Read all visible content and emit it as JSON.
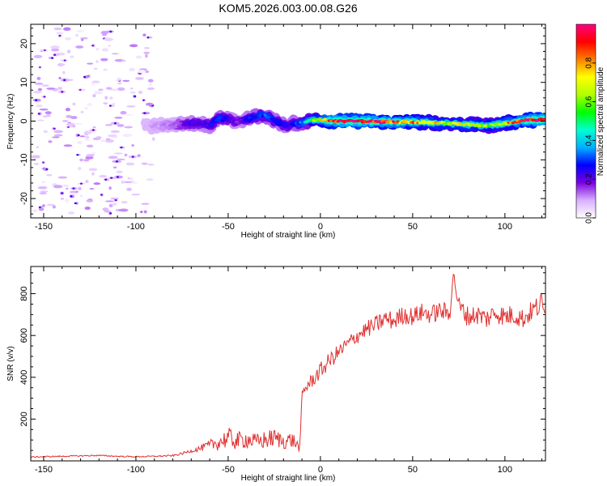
{
  "title": "KOM5.2026.003.00.08.G26",
  "chart_data": [
    {
      "type": "heatmap",
      "xlabel": "Height of straight line (km)",
      "ylabel": "Frequency (Hz)",
      "xlim": [
        -157,
        122
      ],
      "ylim": [
        -25,
        25
      ],
      "x_ticks": [
        -150,
        -100,
        -50,
        0,
        50,
        100
      ],
      "x_tick_labels": [
        "-150",
        "-100",
        "-50",
        "0",
        "50",
        "100"
      ],
      "y_ticks": [
        -20,
        -10,
        0,
        10,
        20
      ],
      "y_tick_labels": [
        "-20",
        "-10",
        "0",
        "10",
        "20"
      ],
      "colorbar": {
        "label": "Normalized spectral amplitude",
        "range": [
          0,
          1
        ],
        "ticks": [
          0,
          0.2,
          0.4,
          0.6,
          0.8
        ],
        "tick_labels": [
          "0.0",
          "0.2",
          "0.4",
          "0.6",
          "0.8"
        ],
        "colormap": [
          "#ffffff",
          "#d8b0ff",
          "#7a00e0",
          "#0000ff",
          "#00b0ff",
          "#00ffd0",
          "#00ff00",
          "#b0ff00",
          "#ffff00",
          "#ff8000",
          "#ff0000",
          "#ff0080"
        ]
      },
      "ridge": {
        "x": [
          -95,
          -90,
          -80,
          -75,
          -70,
          -65,
          -60,
          -55,
          -50,
          -45,
          -40,
          -35,
          -30,
          -25,
          -20,
          -17,
          -15,
          -10,
          -5,
          0,
          5,
          10,
          20,
          30,
          40,
          50,
          60,
          70,
          80,
          90,
          100,
          110,
          122
        ],
        "freq": [
          -1.5,
          -1.2,
          -0.8,
          -0.8,
          -0.6,
          -0.5,
          -1.2,
          0.8,
          0.5,
          -0.4,
          0.5,
          1.2,
          1.5,
          0.2,
          -1.0,
          -1.5,
          -0.5,
          -0.6,
          0.3,
          0.4,
          0.1,
          0.0,
          0.0,
          -0.1,
          -0.3,
          -0.2,
          -0.4,
          -0.6,
          -0.9,
          -1.2,
          -0.6,
          0.2,
          0.4
        ],
        "amplitude": [
          0.08,
          0.1,
          0.12,
          0.18,
          0.22,
          0.2,
          0.24,
          0.3,
          0.22,
          0.18,
          0.25,
          0.3,
          0.32,
          0.28,
          0.24,
          0.2,
          0.26,
          0.35,
          0.55,
          0.75,
          0.9,
          0.95,
          0.98,
          0.92,
          0.85,
          0.8,
          0.72,
          0.65,
          0.7,
          0.6,
          0.75,
          0.9,
          0.95
        ]
      },
      "scatter_region": {
        "x_range": [
          -155,
          -90
        ],
        "freq_range": [
          -24,
          24
        ],
        "amplitude_range": [
          0.02,
          0.12
        ]
      }
    },
    {
      "type": "line",
      "xlabel": "Height of straight line (km)",
      "ylabel": "SNR (v/v)",
      "xlim": [
        -157,
        122
      ],
      "ylim": [
        0,
        930
      ],
      "x_ticks": [
        -150,
        -100,
        -50,
        0,
        50,
        100
      ],
      "x_tick_labels": [
        "-150",
        "-100",
        "-50",
        "0",
        "50",
        "100"
      ],
      "y_ticks": [
        200,
        400,
        600,
        800
      ],
      "y_tick_labels": [
        "200",
        "400",
        "600",
        "800"
      ],
      "series": [
        {
          "name": "SNR",
          "color": "#e03030",
          "x": [
            -157,
            -150,
            -140,
            -130,
            -120,
            -110,
            -100,
            -90,
            -80,
            -75,
            -70,
            -65,
            -60,
            -55,
            -50,
            -45,
            -40,
            -35,
            -30,
            -25,
            -20,
            -15,
            -11,
            -10,
            -8,
            -5,
            0,
            5,
            10,
            15,
            20,
            25,
            30,
            35,
            40,
            45,
            50,
            55,
            60,
            65,
            70,
            72,
            75,
            80,
            85,
            90,
            95,
            100,
            105,
            110,
            115,
            120,
            122
          ],
          "values": [
            18,
            20,
            22,
            24,
            26,
            22,
            20,
            22,
            25,
            35,
            48,
            60,
            75,
            90,
            110,
            95,
            105,
            90,
            100,
            110,
            95,
            100,
            60,
            320,
            350,
            380,
            430,
            480,
            520,
            560,
            600,
            630,
            650,
            680,
            670,
            700,
            690,
            710,
            700,
            720,
            700,
            900,
            740,
            690,
            700,
            680,
            710,
            690,
            700,
            680,
            720,
            750,
            680
          ],
          "noise": [
            3,
            3,
            3,
            3,
            3,
            3,
            3,
            3,
            4,
            6,
            8,
            15,
            25,
            40,
            50,
            45,
            45,
            40,
            45,
            45,
            40,
            40,
            20,
            25,
            30,
            35,
            40,
            40,
            40,
            40,
            40,
            40,
            45,
            45,
            45,
            45,
            45,
            45,
            45,
            45,
            50,
            20,
            50,
            50,
            50,
            50,
            50,
            50,
            50,
            50,
            50,
            60,
            40
          ]
        }
      ]
    }
  ]
}
